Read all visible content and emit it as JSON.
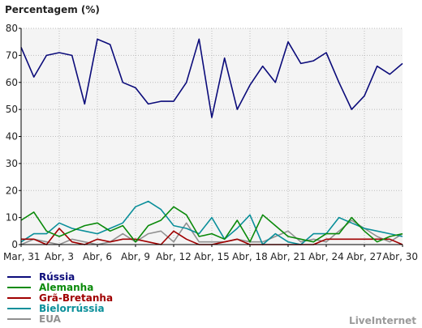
{
  "chart_data": {
    "type": "line",
    "ylabel": "Percentagem (%)",
    "ylim": [
      0,
      80
    ],
    "yticks": [
      "0",
      "10",
      "20",
      "30",
      "40",
      "50",
      "60",
      "70",
      "80"
    ],
    "x": [
      "Mar, 31",
      "Abr, 1",
      "Abr, 2",
      "Abr, 3",
      "Abr, 4",
      "Abr, 5",
      "Abr, 6",
      "Abr, 7",
      "Abr, 8",
      "Abr, 9",
      "Abr, 10",
      "Abr, 11",
      "Abr, 12",
      "Abr, 13",
      "Abr, 14",
      "Abr, 15",
      "Abr, 16",
      "Abr, 17",
      "Abr, 18",
      "Abr, 19",
      "Abr, 20",
      "Abr, 21",
      "Abr, 22",
      "Abr, 23",
      "Abr, 24",
      "Abr, 25",
      "Abr, 26",
      "Abr, 27",
      "Abr, 28",
      "Abr, 29",
      "Abr, 30"
    ],
    "xtick_labels": [
      "Mar, 31",
      "Abr, 3",
      "Abr, 6",
      "Abr, 9",
      "Abr, 12",
      "Abr, 15",
      "Abr, 18",
      "Abr, 21",
      "Abr, 24",
      "Abr, 27",
      "Abr, 30"
    ],
    "grid": true,
    "legend_position": "bottom-left",
    "series": [
      {
        "name": "Rússia",
        "color": "#0b0b7a",
        "values": [
          73,
          62,
          70,
          71,
          70,
          52,
          76,
          74,
          60,
          58,
          52,
          53,
          53,
          60,
          76,
          47,
          69,
          50,
          59,
          66,
          60,
          75,
          67,
          68,
          71,
          60,
          50,
          55,
          66,
          63,
          67
        ]
      },
      {
        "name": "Alemanha",
        "color": "#0a8a0a",
        "values": [
          9,
          12,
          5,
          3,
          5,
          7,
          8,
          5,
          7,
          1,
          7,
          9,
          14,
          11,
          3,
          4,
          2,
          9,
          1,
          11,
          7,
          3,
          2,
          1,
          4,
          4,
          10,
          5,
          1,
          3,
          4
        ]
      },
      {
        "name": "Grã-Bretanha",
        "color": "#a00000",
        "values": [
          2,
          2,
          0,
          6,
          1,
          0,
          2,
          1,
          2,
          2,
          1,
          0,
          5,
          2,
          0,
          0,
          1,
          2,
          0,
          0,
          0,
          0,
          0,
          0,
          2,
          2,
          2,
          2,
          2,
          2,
          0
        ]
      },
      {
        "name": "Bielorrússia",
        "color": "#0a8f9a",
        "values": [
          1,
          4,
          4,
          8,
          6,
          5,
          4,
          6,
          8,
          14,
          16,
          13,
          7,
          6,
          4,
          10,
          2,
          6,
          11,
          0,
          4,
          1,
          0,
          4,
          4,
          10,
          8,
          6,
          5,
          4,
          3
        ]
      },
      {
        "name": "EUA",
        "color": "#909090",
        "values": [
          0,
          2,
          1,
          0,
          2,
          1,
          0,
          1,
          4,
          1,
          4,
          5,
          1,
          8,
          1,
          1,
          1,
          2,
          1,
          1,
          3,
          5,
          1,
          2,
          1,
          5,
          9,
          6,
          3,
          1,
          4
        ]
      }
    ]
  },
  "branding": "LiveInternet"
}
